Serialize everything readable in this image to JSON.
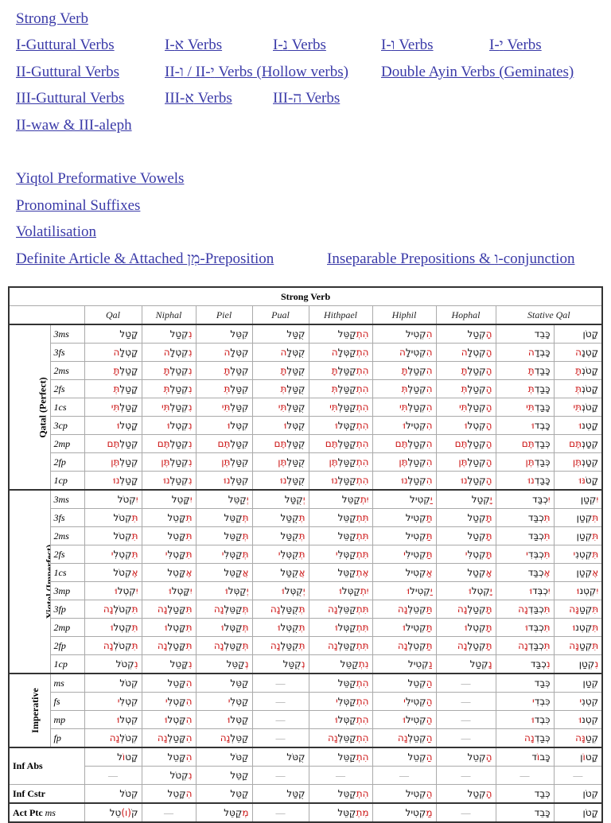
{
  "links": {
    "strong": "Strong Verb",
    "row1": [
      "I-Guttural Verbs",
      "I-א Verbs",
      "I-נ Verbs",
      "I-ו Verbs",
      "I-י Verbs"
    ],
    "row2": [
      "II-Guttural Verbs",
      "II-ו / II-י Verbs (Hollow verbs)",
      "Double Ayin Verbs (Geminates)"
    ],
    "row3": [
      "III-Guttural Verbs",
      "III-א Verbs",
      "III-ה Verbs"
    ],
    "row4": [
      "II-waw & III-aleph"
    ],
    "extra": [
      "Yiqtol Preformative Vowels",
      "Pronominal Suffixes",
      "Volatilisation",
      "Definite Article & Attached מִן-Preposition",
      "Inseparable Prepositions & ו-conjunction"
    ]
  },
  "table": {
    "title": "Strong Verb",
    "stems": [
      "Qal",
      "Niphal",
      "Piel",
      "Pual",
      "Hithpael",
      "Hiphil",
      "Hophal",
      "Stative Qal"
    ],
    "highlight_color": "#cc1414",
    "sections": [
      {
        "label": "Qatal   (Perfect)",
        "rows": [
          {
            "person": "3ms",
            "cells": [
              "קָטַל",
              "{נִ}קְטַל",
              "קִטֵּל",
              "קֻטַּל",
              "{הִתְ}קַטֵּל",
              "{הִ}קְטִיל",
              "{הָ}קְטַל",
              "כָּבֵד",
              "קָטֹן"
            ]
          },
          {
            "person": "3fs",
            "cells": [
              "קָטְלָ{ה}",
              "{נִ}קְטְלָ{ה}",
              "קִטְּלָ{ה}",
              "קֻטְּלָ{ה}",
              "{הִתְ}קַטְּלָ{ה}",
              "{הִ}קְטִילָ{ה}",
              "{הָ}קְטְלָ{ה}",
              "כָּבְדָ{ה}",
              "קָטְנָ{ה}"
            ]
          },
          {
            "person": "2ms",
            "cells": [
              "קָטַלְ{תָּ}",
              "{נִ}קְטַלְ{תָּ}",
              "קִטַּלְ{תָּ}",
              "קֻטַּלְ{תָּ}",
              "{הִתְ}קַטַּלְ{תָּ}",
              "{הִ}קְטַלְ{תָּ}",
              "{הָ}קְטַלְ{תָּ}",
              "כָּבַדְ{תָּ}",
              "קָטֹנְ{תָּ}"
            ]
          },
          {
            "person": "2fs",
            "cells": [
              "קָטַלְ{תְּ}",
              "{נִ}קְטַלְ{תְּ}",
              "קִטַּלְ{תְּ}",
              "קֻטַּלְ{תְּ}",
              "{הִתְ}קַטַּלְ{תְּ}",
              "{הִ}קְטַלְ{תְּ}",
              "{הָ}קְטַלְ{תְּ}",
              "כָּבַדְ{תְּ}",
              "קָטֹנְ{תְּ}"
            ]
          },
          {
            "person": "1cs",
            "cells": [
              "קָטַלְ{תִּי}",
              "{נִ}קְטַלְ{תִּי}",
              "קִטַּלְ{תִּי}",
              "קֻטַּלְ{תִּי}",
              "{הִתְ}קַטַּלְ{תִּי}",
              "{הִ}קְטַלְ{תִּי}",
              "{הָ}קְטַלְ{תִּי}",
              "כָּבַדְ{תִּי}",
              "קָטֹנְ{תִּי}"
            ]
          },
          {
            "person": "3cp",
            "cells": [
              "קָטְל{וּ}",
              "{נִ}קְטְל{וּ}",
              "קִטְּל{וּ}",
              "קֻטְּל{וּ}",
              "{הִתְ}קַטְּל{וּ}",
              "{הִ}קְטִיל{וּ}",
              "{הָ}קְטְל{וּ}",
              "כָּבְד{וּ}",
              "קָטְנ{וּ}"
            ]
          },
          {
            "person": "2mp",
            "cells": [
              "קְטַלְ{תֶּם}",
              "{נִ}קְטַלְ{תֶּם}",
              "קִטַּלְ{תֶּם}",
              "קֻטַּלְ{תֶּם}",
              "{הִתְ}קַטַּלְ{תֶּם}",
              "{הִ}קְטַלְ{תֶּם}",
              "{הָ}קְטַלְ{תֶּם}",
              "כְּבַדְ{תֶּם}",
              "קְטָנְ{תֶּם}"
            ]
          },
          {
            "person": "2fp",
            "cells": [
              "קְטַלְ{תֶּן}",
              "{נִ}קְטַלְ{תֶּן}",
              "קִטַּלְ{תֶּן}",
              "קֻטַּלְ{תֶּן}",
              "{הִתְ}קַטַּלְ{תֶּן}",
              "{הִ}קְטַלְ{תֶּן}",
              "{הָ}קְטַלְ{תֶּן}",
              "כְּבַדְ{תֶּן}",
              "קְטָנְ{תֶּן}"
            ]
          },
          {
            "person": "1cp",
            "cells": [
              "קָטַלְ{נוּ}",
              "{נִ}קְטַלְ{נוּ}",
              "קִטַּלְ{נוּ}",
              "קֻטַּלְ{נוּ}",
              "{הִתְ}קַטַּלְ{נוּ}",
              "{הִ}קְטַלְ{נוּ}",
              "{הָ}קְטַלְ{נוּ}",
              "כָּבַדְ{נוּ}",
              "קָטֹ{נּוּ}"
            ]
          }
        ]
      },
      {
        "label": "Yiqtol   (Imperfect)",
        "rows": [
          {
            "person": "3ms",
            "cells": [
              "{יִ}קְטֹל",
              "{יִ}קָּטֵל",
              "{יְ}קַטֵּל",
              "{יְ}קֻטַּל",
              "{יִתְ}קַטֵּל",
              "{יַ}קְטִיל",
              "{יָ}קְטַל",
              "{יִ}כְבַּד",
              "{יִ}קְטַן"
            ]
          },
          {
            "person": "3fs",
            "cells": [
              "{תִּ}קְטֹל",
              "{תִּ}קָּטֵל",
              "{תְּ}קַטֵּל",
              "{תְּ}קֻטַּל",
              "{תִּתְ}קַטֵּל",
              "{תַּ}קְטִיל",
              "{תָּ}קְטַל",
              "{תִּ}כְבַּד",
              "{תִּ}קְטַן"
            ]
          },
          {
            "person": "2ms",
            "cells": [
              "{תִּ}קְטֹל",
              "{תִּ}קָּטֵל",
              "{תְּ}קַטֵּל",
              "{תְּ}קֻטַּל",
              "{תִּתְ}קַטֵּל",
              "{תַּ}קְטִיל",
              "{תָּ}קְטַל",
              "{תִּ}כְבַּד",
              "{תִּ}קְטַן"
            ]
          },
          {
            "person": "2fs",
            "cells": [
              "{תִּ}קְטְלִ{י}",
              "{תִּ}קָּטְלִ{י}",
              "{תְּ}קַטְּלִ{י}",
              "{תְּ}קֻטְּלִ{י}",
              "{תִּתְ}קַטְּלִ{י}",
              "{תַּ}קְטִילִ{י}",
              "{תָּ}קְטְלִ{י}",
              "{תִּ}כְבְּדִ{י}",
              "{תִּ}קְטְנִ{י}"
            ]
          },
          {
            "person": "1cs",
            "cells": [
              "{אֶ}קְטֹל",
              "{אֶ}קָּטֵל",
              "{אֲ}קַטֵּל",
              "{אֲ}קֻטַּל",
              "{אֶתְ}קַטֵּל",
              "{אַ}קְטִיל",
              "{אָ}קְטַל",
              "{אֶ}כְבַּד",
              "{אֶ}קְטַן"
            ]
          },
          {
            "person": "3mp",
            "cells": [
              "{יִ}קְטְל{וּ}",
              "{יִ}קָּטְל{וּ}",
              "{יְ}קַטְּל{וּ}",
              "{יְ}קֻטְּל{וּ}",
              "{יִתְ}קַטְּל{וּ}",
              "{יַ}קְטִיל{וּ}",
              "{יָ}קְטְל{וּ}",
              "{יִ}כְבְּד{וּ}",
              "{יִ}קְטְנ{וּ}"
            ]
          },
          {
            "person": "3fp",
            "cells": [
              "{תִּ}קְטֹלְ{נָה}",
              "{תִּ}קָּטַלְ{נָה}",
              "{תְּ}קַטֵּלְ{נָה}",
              "{תְּ}קֻטַּלְ{נָה}",
              "{תִּתְ}קַטֵּלְ{נָה}",
              "{תַּ}קְטֵלְ{נָה}",
              "{תָּ}קְטַלְ{נָה}",
              "{תִּ}כְבַּדְ{נָה}",
              "{תִּ}קְטַ{נָּה}"
            ]
          },
          {
            "person": "2mp",
            "cells": [
              "{תִּ}קְטְל{וּ}",
              "{תִּ}קָּטְל{וּ}",
              "{תְּ}קַטְּל{וּ}",
              "{תְּ}קֻטְּל{וּ}",
              "{תִּתְ}קַטְּל{וּ}",
              "{תַּ}קְטִיל{וּ}",
              "{תָּ}קְטְל{וּ}",
              "{תִּ}כְבְּד{וּ}",
              "{תִּ}קְטְנ{וּ}"
            ]
          },
          {
            "person": "2fp",
            "cells": [
              "{תִּ}קְטֹלְ{נָה}",
              "{תִּ}קָּטַלְ{נָה}",
              "{תְּ}קַטֵּלְ{נָה}",
              "{תְּ}קֻטַּלְ{נָה}",
              "{תִּתְ}קַטֵּלְ{נָה}",
              "{תַּ}קְטֵלְ{נָה}",
              "{תָּ}קְטַלְ{נָה}",
              "{תִּ}כְבַּדְ{נָה}",
              "{תִּ}קְטַ{נָּה}"
            ]
          },
          {
            "person": "1cp",
            "cells": [
              "{נִ}קְטֹל",
              "{נִ}קָּטֵל",
              "{נְ}קַטֵּל",
              "{נְ}קֻטַּל",
              "{נִתְ}קַטֵּל",
              "{נַ}קְטִיל",
              "{נָ}קְטַל",
              "{נִ}כְבַּד",
              "{נִ}קְטַן"
            ]
          }
        ]
      },
      {
        "label": "Imperative",
        "rows": [
          {
            "person": "ms",
            "cells": [
              "קְטֹל",
              "{הִ}קָּטֵל",
              "קַטֵּל",
              "—",
              "{הִתְ}קַטֵּל",
              "{הַ}קְטֵל",
              "—",
              "כְּבַד",
              "קְטַן"
            ]
          },
          {
            "person": "fs",
            "cells": [
              "קִטְלִ{י}",
              "{הִ}קָּטְלִ{י}",
              "קַטְּלִ{י}",
              "—",
              "{הִתְ}קַטְּלִ{י}",
              "{הַ}קְטִילִ{י}",
              "—",
              "כִּבְדִ{י}",
              "קִטְנִ{י}"
            ]
          },
          {
            "person": "mp",
            "cells": [
              "קִטְל{וּ}",
              "{הִ}קָּטְל{וּ}",
              "קַטְּל{וּ}",
              "—",
              "{הִתְ}קַטְּל{וּ}",
              "{הַ}קְטִיל{וּ}",
              "—",
              "כִּבְד{וּ}",
              "קִטְנ{וּ}"
            ]
          },
          {
            "person": "fp",
            "cells": [
              "קְטֹלְ{נָה}",
              "{הִ}קָּטַלְ{נָה}",
              "קַטֵּלְ{נָה}",
              "—",
              "{הִתְ}קַטֵּלְ{נָה}",
              "{הַ}קְטֵלְ{נָה}",
              "—",
              "כְּבַדְ{נָה}",
              "קְטַ{נָּה}"
            ]
          }
        ]
      }
    ],
    "inf_abs": {
      "label": "Inf Abs",
      "rows": [
        [
          "קָט{וֹ}ל",
          "{הִ}קָּטֵל",
          "קַטֹּל",
          "קֻטֹּל",
          "{הִתְ}קַטֵּל",
          "{הַ}קְטֵל",
          "{הָ}קְטֵל",
          "כָּב{וֹ}ד",
          "קָט{וֹ}ן"
        ],
        [
          "—",
          "{נִ}קְטֹל",
          "קַטֵּל",
          "—",
          "—",
          "—",
          "—",
          "—",
          "—"
        ]
      ]
    },
    "inf_cstr": {
      "label": "Inf Cstr",
      "cells": [
        "קְטֹל",
        "{הִ}קָּטֵל",
        "קַטֵּל",
        "קֻטַּל",
        "{הִתְ}קַטֵּל",
        "{הַ}קְטִיל",
        "{הָ}קְטַל",
        "כְּבַד",
        "קְטֹן"
      ]
    },
    "act_ptc": {
      "label": "Act Ptc",
      "person": "ms",
      "cells": [
        "קֹ{(ו)}טֵל",
        "—",
        "{מְ}קַטֵּל",
        "—",
        "{מִתְ}קַטֵּל",
        "{מַ}קְטִיל",
        "—",
        "כָּבֵד",
        "קָטֹן"
      ]
    }
  }
}
